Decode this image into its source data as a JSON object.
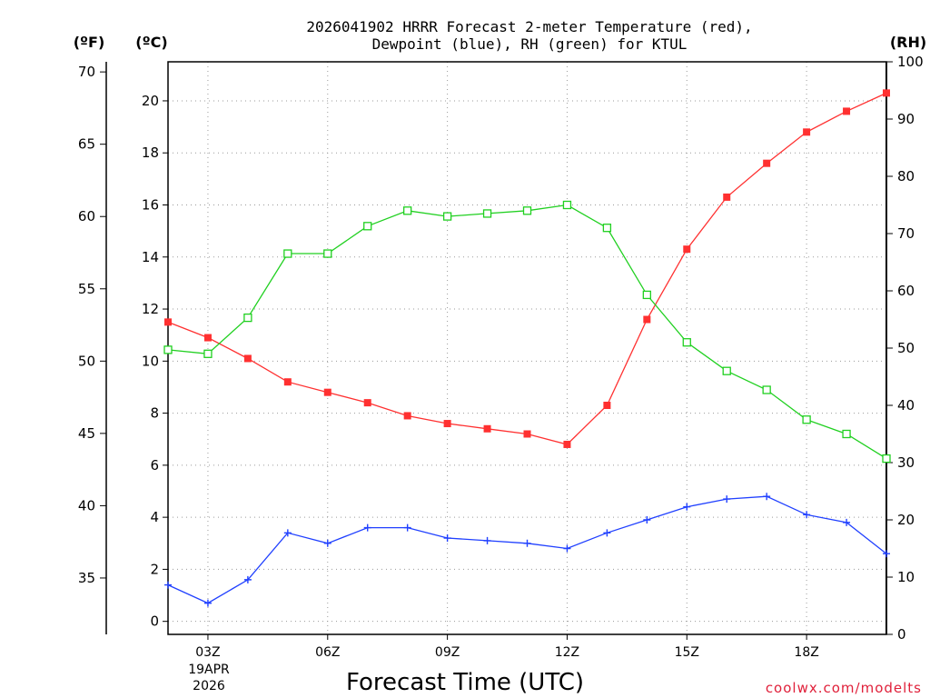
{
  "chart_data": {
    "type": "line",
    "title_lines": [
      "2026041902 HRRR Forecast 2-meter Temperature (red),",
      "Dewpoint (blue), RH (green) for KTUL"
    ],
    "xlabel": "Forecast Time (UTC)",
    "credit": "coolwx.com/modelts",
    "axis_headers": {
      "fahrenheit": "(ºF)",
      "celsius": "(ºC)",
      "rh": "(RH)"
    },
    "x_hours": [
      2,
      3,
      4,
      5,
      6,
      7,
      8,
      9,
      10,
      11,
      12,
      13,
      14,
      15,
      16,
      17,
      18,
      19,
      20
    ],
    "xlim": [
      2,
      20
    ],
    "x_ticks": [
      {
        "hour": 3,
        "label": "03Z"
      },
      {
        "hour": 6,
        "label": "06Z"
      },
      {
        "hour": 9,
        "label": "09Z"
      },
      {
        "hour": 12,
        "label": "12Z"
      },
      {
        "hour": 15,
        "label": "15Z"
      },
      {
        "hour": 18,
        "label": "18Z"
      }
    ],
    "date_label": [
      "19APR",
      "2026"
    ],
    "celsius_axis": {
      "ylim": [
        -0.5,
        21.5
      ],
      "ticks": [
        "0",
        "2",
        "4",
        "6",
        "8",
        "10",
        "12",
        "14",
        "16",
        "18",
        "20"
      ]
    },
    "fahrenheit_axis": {
      "ylim": [
        31.1,
        70.7
      ],
      "ticks": [
        "35",
        "40",
        "45",
        "50",
        "55",
        "60",
        "65",
        "70"
      ]
    },
    "rh_axis": {
      "ylim": [
        0,
        100
      ],
      "ticks": [
        "0",
        "10",
        "20",
        "30",
        "40",
        "50",
        "60",
        "70",
        "80",
        "90",
        "100"
      ]
    },
    "series": [
      {
        "name": "2-meter Temperature",
        "axis": "celsius",
        "color": "#ff3030",
        "marker": "filled-square",
        "values": [
          11.5,
          10.9,
          10.1,
          9.2,
          8.8,
          8.4,
          7.9,
          7.6,
          7.4,
          7.2,
          6.8,
          8.3,
          11.6,
          14.3,
          16.3,
          17.6,
          18.8,
          19.6,
          20.3
        ]
      },
      {
        "name": "Dewpoint",
        "axis": "celsius",
        "color": "#2040ff",
        "marker": "plus",
        "values": [
          1.4,
          0.7,
          1.6,
          3.4,
          3.0,
          3.6,
          3.6,
          3.2,
          3.1,
          3.0,
          2.8,
          3.4,
          3.9,
          4.4,
          4.7,
          4.8,
          4.1,
          3.8,
          2.6
        ]
      },
      {
        "name": "RH",
        "axis": "rh",
        "color": "#20d020",
        "marker": "open-square",
        "values": [
          49.7,
          49.0,
          55.3,
          66.5,
          66.5,
          71.3,
          74.0,
          73.0,
          73.5,
          74.0,
          75.0,
          71.0,
          59.3,
          51.0,
          46.0,
          42.7,
          37.5,
          35.0,
          30.7
        ]
      }
    ]
  }
}
